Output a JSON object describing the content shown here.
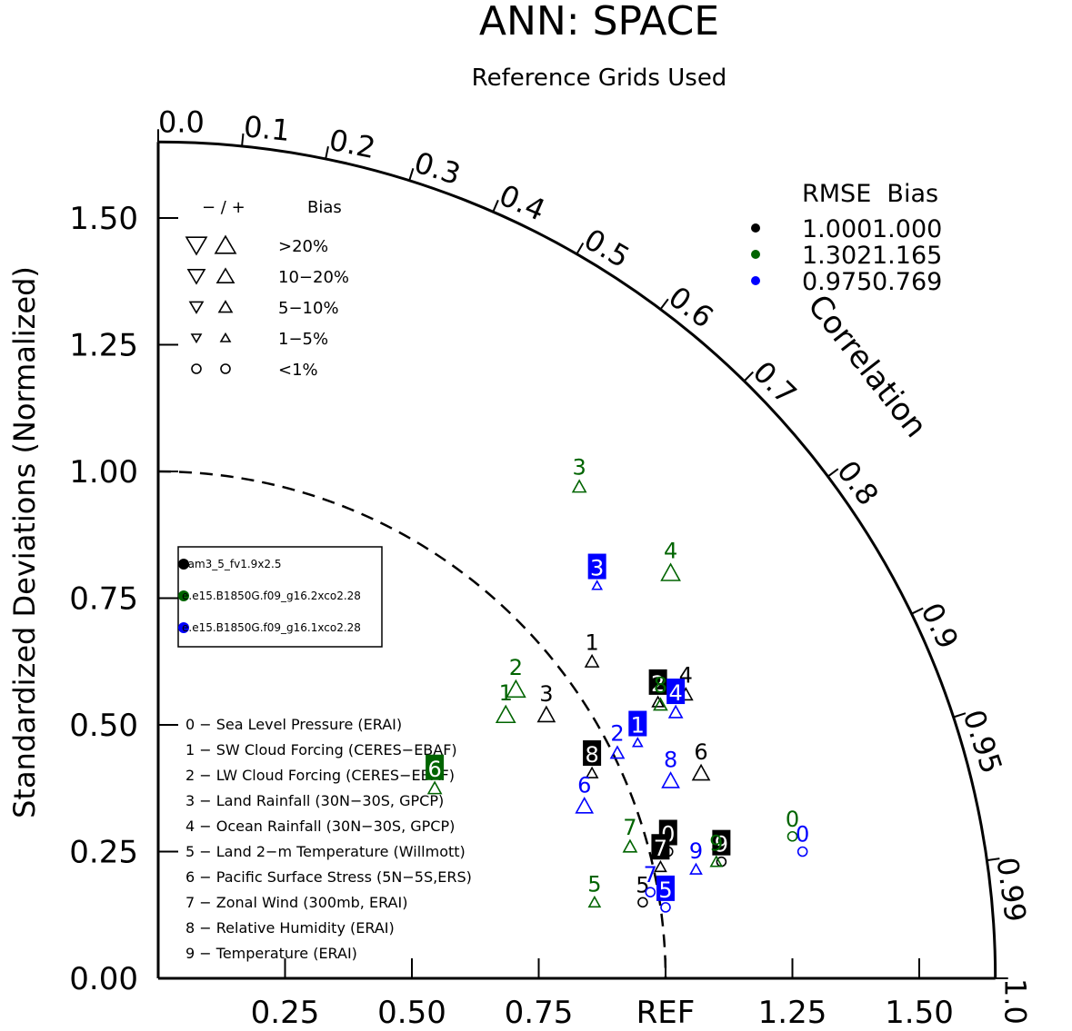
{
  "title": "ANN: SPACE",
  "subtitle": "Reference Grids Used",
  "chart_data": {
    "type": "scatter",
    "subtype": "taylor-diagram",
    "title": "ANN: SPACE",
    "subtitle": "Reference Grids Used",
    "ylabel": "Standardized Deviations (Normalized)",
    "corr_label": "Correlation",
    "ref_label": "REF",
    "std_range": [
      0,
      1.65
    ],
    "y_ticks": [
      {
        "v": 0.0,
        "label": "0.00"
      },
      {
        "v": 0.25,
        "label": "0.25"
      },
      {
        "v": 0.5,
        "label": "0.50"
      },
      {
        "v": 0.75,
        "label": "0.75"
      },
      {
        "v": 1.0,
        "label": "1.00"
      },
      {
        "v": 1.25,
        "label": "1.25"
      },
      {
        "v": 1.5,
        "label": "1.50"
      }
    ],
    "x_ticks": [
      {
        "v": 0.25,
        "label": "0.25"
      },
      {
        "v": 0.5,
        "label": "0.50"
      },
      {
        "v": 0.75,
        "label": "0.75"
      },
      {
        "v": 1.0,
        "label": "REF"
      },
      {
        "v": 1.25,
        "label": "1.25"
      },
      {
        "v": 1.5,
        "label": "1.50"
      }
    ],
    "corr_ticks": [
      {
        "v": 0.0,
        "label": "0.0"
      },
      {
        "v": 0.1,
        "label": "0.1"
      },
      {
        "v": 0.2,
        "label": "0.2"
      },
      {
        "v": 0.3,
        "label": "0.3"
      },
      {
        "v": 0.4,
        "label": "0.4"
      },
      {
        "v": 0.5,
        "label": "0.5"
      },
      {
        "v": 0.6,
        "label": "0.6"
      },
      {
        "v": 0.7,
        "label": "0.7"
      },
      {
        "v": 0.8,
        "label": "0.8"
      },
      {
        "v": 0.9,
        "label": "0.9"
      },
      {
        "v": 0.95,
        "label": "0.95"
      },
      {
        "v": 0.99,
        "label": "0.99"
      },
      {
        "v": 1.0,
        "label": "1.0"
      }
    ],
    "bias_legend": {
      "header_sign": "− / +",
      "header_label": "Bias",
      "rows": [
        {
          "label": ">20%",
          "size": 22,
          "shape": "triangle"
        },
        {
          "label": "10−20%",
          "size": 18,
          "shape": "triangle"
        },
        {
          "label": "5−10%",
          "size": 14,
          "shape": "triangle"
        },
        {
          "label": "1−5%",
          "size": 10,
          "shape": "triangle"
        },
        {
          "label": "<1%",
          "size": 10,
          "shape": "circle"
        }
      ]
    },
    "rmse_legend": {
      "header": "RMSE  Bias",
      "rows": [
        {
          "color": "#000000",
          "rmse": "1.000",
          "bias": "1.000"
        },
        {
          "color": "#006400",
          "rmse": "1.302",
          "bias": "1.165"
        },
        {
          "color": "#0000ff",
          "rmse": "0.975",
          "bias": "0.769"
        }
      ]
    },
    "cases": [
      {
        "name": "cam3_5_fv1.9x2.5",
        "color": "#000000"
      },
      {
        "name": "e.e15.B1850G.f09_g16.2xco2.28",
        "color": "#006400"
      },
      {
        "name": "e.e15.B1850G.f09_g16.1xco2.28",
        "color": "#0000ff"
      }
    ],
    "variables": [
      "0 − Sea Level Pressure (ERAI)",
      "1 − SW Cloud Forcing (CERES−EBAF)",
      "2 − LW Cloud Forcing (CERES−EBAF)",
      "3 − Land Rainfall (30N−30S, GPCP)",
      "4 − Ocean Rainfall (30N−30S, GPCP)",
      "5 − Land 2−m Temperature (Willmott)",
      "6 − Pacific Surface Stress (5N−5S,ERS)",
      "7 − Zonal Wind (300mb, ERAI)",
      "8 − Relative Humidity (ERAI)",
      "9 − Temperature (ERAI)"
    ],
    "series": [
      {
        "name": "cam3_5_fv1.9x2.5",
        "color": "#000000",
        "points": [
          {
            "label": "0",
            "x": 1.005,
            "y": 0.25,
            "boxed": true,
            "marker": "circle",
            "bias_size": 10
          },
          {
            "label": "1",
            "x": 0.855,
            "y": 0.625,
            "boxed": false,
            "marker": "tri-up",
            "bias_size": 14
          },
          {
            "label": "2",
            "x": 0.985,
            "y": 0.545,
            "boxed": true,
            "marker": "tri-up",
            "bias_size": 12
          },
          {
            "label": "3",
            "x": 0.765,
            "y": 0.52,
            "boxed": false,
            "marker": "tri-up",
            "bias_size": 18
          },
          {
            "label": "4",
            "x": 1.04,
            "y": 0.56,
            "boxed": false,
            "marker": "tri-up",
            "bias_size": 14
          },
          {
            "label": "5",
            "x": 0.955,
            "y": 0.15,
            "boxed": false,
            "marker": "circle",
            "bias_size": 10
          },
          {
            "label": "6",
            "x": 1.07,
            "y": 0.405,
            "boxed": false,
            "marker": "tri-up",
            "bias_size": 18
          },
          {
            "label": "7",
            "x": 0.99,
            "y": 0.22,
            "boxed": true,
            "marker": "tri-up",
            "bias_size": 12
          },
          {
            "label": "8",
            "x": 0.855,
            "y": 0.405,
            "boxed": true,
            "marker": "tri-up",
            "bias_size": 12
          },
          {
            "label": "9",
            "x": 1.11,
            "y": 0.23,
            "boxed": true,
            "marker": "circle",
            "bias_size": 10
          }
        ]
      },
      {
        "name": "e.e15.B1850G.f09_g16.2xco2.28",
        "color": "#006400",
        "points": [
          {
            "label": "0",
            "x": 1.25,
            "y": 0.28,
            "boxed": false,
            "marker": "circle",
            "bias_size": 10
          },
          {
            "label": "1",
            "x": 0.685,
            "y": 0.52,
            "boxed": false,
            "marker": "tri-up",
            "bias_size": 20
          },
          {
            "label": "2",
            "x": 0.705,
            "y": 0.57,
            "boxed": false,
            "marker": "tri-up",
            "bias_size": 20
          },
          {
            "label": "3",
            "x": 0.83,
            "y": 0.97,
            "boxed": false,
            "marker": "tri-up",
            "bias_size": 14
          },
          {
            "label": "4",
            "x": 1.01,
            "y": 0.8,
            "boxed": false,
            "marker": "tri-up",
            "bias_size": 20
          },
          {
            "label": "5",
            "x": 0.86,
            "y": 0.15,
            "boxed": false,
            "marker": "tri-up",
            "bias_size": 12
          },
          {
            "label": "6",
            "x": 0.545,
            "y": 0.375,
            "boxed": true,
            "marker": "tri-up",
            "bias_size": 14
          },
          {
            "label": "7",
            "x": 0.93,
            "y": 0.26,
            "boxed": false,
            "marker": "tri-up",
            "bias_size": 14
          },
          {
            "label": "8",
            "x": 0.99,
            "y": 0.54,
            "boxed": false,
            "marker": "tri-up",
            "bias_size": 14
          },
          {
            "label": "9",
            "x": 1.1,
            "y": 0.23,
            "boxed": false,
            "marker": "tri-up",
            "bias_size": 12
          }
        ]
      },
      {
        "name": "e.e15.B1850G.f09_g16.1xco2.28",
        "color": "#0000ff",
        "points": [
          {
            "label": "0",
            "x": 1.27,
            "y": 0.25,
            "boxed": false,
            "marker": "circle",
            "bias_size": 10
          },
          {
            "label": "1",
            "x": 0.945,
            "y": 0.465,
            "boxed": true,
            "marker": "tri-up",
            "bias_size": 10
          },
          {
            "label": "2",
            "x": 0.905,
            "y": 0.445,
            "boxed": false,
            "marker": "tri-up",
            "bias_size": 14
          },
          {
            "label": "3",
            "x": 0.865,
            "y": 0.775,
            "boxed": true,
            "marker": "tri-up",
            "bias_size": 10
          },
          {
            "label": "4",
            "x": 1.02,
            "y": 0.525,
            "boxed": true,
            "marker": "tri-up",
            "bias_size": 14
          },
          {
            "label": "5",
            "x": 1.0,
            "y": 0.14,
            "boxed": true,
            "marker": "circle",
            "bias_size": 10
          },
          {
            "label": "6",
            "x": 0.84,
            "y": 0.34,
            "boxed": false,
            "marker": "tri-up",
            "bias_size": 18
          },
          {
            "label": "7",
            "x": 0.97,
            "y": 0.17,
            "boxed": false,
            "marker": "circle",
            "bias_size": 10
          },
          {
            "label": "8",
            "x": 1.01,
            "y": 0.39,
            "boxed": false,
            "marker": "tri-up",
            "bias_size": 18
          },
          {
            "label": "9",
            "x": 1.06,
            "y": 0.215,
            "boxed": false,
            "marker": "tri-up",
            "bias_size": 12
          }
        ]
      }
    ]
  }
}
